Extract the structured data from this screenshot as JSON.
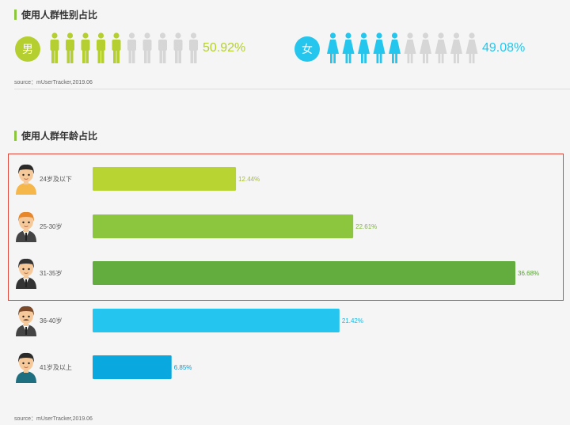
{
  "gender_section": {
    "title": "使用人群性别占比",
    "source": "source：mUserTracker,2019.06",
    "male": {
      "label": "男",
      "percent_text": "50.92%",
      "filled": 5,
      "total": 10,
      "color": "#b5cf30"
    },
    "female": {
      "label": "女",
      "percent_text": "49.08%",
      "filled": 5,
      "total": 10,
      "color": "#24c6ee"
    },
    "empty_color": "#d6d6d6"
  },
  "age_section": {
    "title": "使用人群年龄占比",
    "source": "source：mUserTracker,2019.06"
  },
  "chart_data": {
    "type": "bar",
    "orientation": "horizontal",
    "categories": [
      "24岁及以下",
      "25-30岁",
      "31-35岁",
      "36-40岁",
      "41岁及以上"
    ],
    "values": [
      12.44,
      22.61,
      36.68,
      21.42,
      6.85
    ],
    "value_labels": [
      "12.44%",
      "22.61%",
      "36.68%",
      "21.42%",
      "6.85%"
    ],
    "colors": [
      "#b8d433",
      "#8cc63f",
      "#63ad3f",
      "#24c6ef",
      "#09a9df"
    ],
    "label_colors": [
      "#a5c12a",
      "#7bb534",
      "#5aa038",
      "#1fb6e0",
      "#0a9ad0"
    ],
    "xlim": [
      0,
      36.68
    ],
    "title": "",
    "xlabel": "",
    "ylabel": "",
    "highlighted_categories": [
      "24岁及以下",
      "25-30岁",
      "31-35岁"
    ],
    "highlight_color": "#e0463a",
    "avatar_icons": [
      "young-boy-avatar-icon",
      "orange-hair-man-avatar-icon",
      "suit-man-avatar-icon",
      "mustache-man-avatar-icon",
      "older-man-avatar-icon"
    ]
  }
}
